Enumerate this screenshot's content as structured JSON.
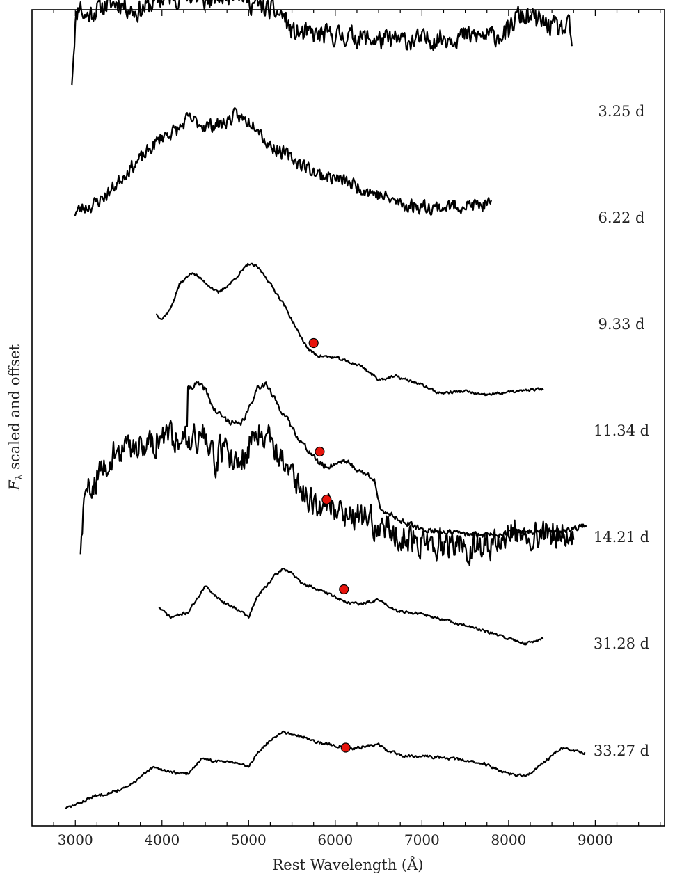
{
  "chart_data": {
    "type": "line",
    "xlabel": "Rest Wavelength (Å)",
    "ylabel": "F_λ scaled and offset",
    "ylabel_main": "F",
    "ylabel_sub": "λ",
    "ylabel_rest": " scaled and offset",
    "xlim": [
      2500,
      9800
    ],
    "xticks_major": [
      3000,
      4000,
      5000,
      6000,
      7000,
      8000,
      9000
    ],
    "xtick_labels": [
      "3000",
      "4000",
      "5000",
      "6000",
      "7000",
      "8000",
      "9000"
    ],
    "xticks_minor_step": 250,
    "grid": false,
    "yticks_shown": false,
    "marker_color": "#e8140c",
    "line_color": "#000000",
    "series": [
      {
        "epoch": "3.25 d",
        "noise": 0.09,
        "seed": 11,
        "points": [
          [
            2960,
            0.3
          ],
          [
            3000,
            0.85
          ],
          [
            3050,
            1.05
          ],
          [
            3100,
            0.9
          ],
          [
            3200,
            0.95
          ],
          [
            3300,
            1.0
          ],
          [
            3500,
            1.05
          ],
          [
            3700,
            0.95
          ],
          [
            4000,
            1.08
          ],
          [
            4300,
            1.12
          ],
          [
            4500,
            1.05
          ],
          [
            4700,
            1.1
          ],
          [
            4850,
            1.18
          ],
          [
            5000,
            1.05
          ],
          [
            5200,
            0.98
          ],
          [
            5400,
            0.92
          ],
          [
            5500,
            0.75
          ],
          [
            5800,
            0.73
          ],
          [
            6200,
            0.72
          ],
          [
            6500,
            0.68
          ],
          [
            7000,
            0.68
          ],
          [
            7400,
            0.72
          ],
          [
            7800,
            0.72
          ],
          [
            8000,
            0.75
          ],
          [
            8100,
            0.92
          ],
          [
            8300,
            0.88
          ],
          [
            8600,
            0.78
          ],
          [
            8700,
            0.8
          ],
          [
            8730,
            0.65
          ]
        ]
      },
      {
        "epoch": "6.22 d",
        "noise": 0.06,
        "seed": 23,
        "points": [
          [
            2990,
            0.05
          ],
          [
            3100,
            0.1
          ],
          [
            3200,
            0.12
          ],
          [
            3400,
            0.25
          ],
          [
            3600,
            0.45
          ],
          [
            3800,
            0.6
          ],
          [
            4000,
            0.78
          ],
          [
            4200,
            0.85
          ],
          [
            4300,
            0.95
          ],
          [
            4500,
            0.88
          ],
          [
            4700,
            0.9
          ],
          [
            4850,
            0.98
          ],
          [
            5000,
            0.92
          ],
          [
            5100,
            0.9
          ],
          [
            5200,
            0.72
          ],
          [
            5400,
            0.62
          ],
          [
            5600,
            0.52
          ],
          [
            5800,
            0.42
          ],
          [
            6000,
            0.38
          ],
          [
            6200,
            0.32
          ],
          [
            6500,
            0.22
          ],
          [
            6800,
            0.12
          ],
          [
            7200,
            0.1
          ],
          [
            7500,
            0.12
          ],
          [
            7800,
            0.12
          ]
        ]
      },
      {
        "epoch": "9.33 d",
        "noise": 0.012,
        "seed": 37,
        "points": [
          [
            3930,
            0.1
          ],
          [
            4000,
            0.05
          ],
          [
            4100,
            0.15
          ],
          [
            4200,
            0.38
          ],
          [
            4350,
            0.5
          ],
          [
            4500,
            0.4
          ],
          [
            4650,
            0.3
          ],
          [
            4800,
            0.4
          ],
          [
            5000,
            0.58
          ],
          [
            5100,
            0.55
          ],
          [
            5200,
            0.45
          ],
          [
            5400,
            0.2
          ],
          [
            5600,
            -0.12
          ],
          [
            5700,
            -0.25
          ],
          [
            5800,
            -0.3
          ],
          [
            6000,
            -0.32
          ],
          [
            6300,
            -0.4
          ],
          [
            6500,
            -0.53
          ],
          [
            6700,
            -0.5
          ],
          [
            7000,
            -0.58
          ],
          [
            7200,
            -0.66
          ],
          [
            7500,
            -0.64
          ],
          [
            7700,
            -0.68
          ],
          [
            8000,
            -0.65
          ],
          [
            8400,
            -0.62
          ]
        ]
      },
      {
        "epoch": "11.34 d",
        "noise": 0.025,
        "seed": 41,
        "points": [
          [
            4290,
            0.05
          ],
          [
            4300,
            0.4
          ],
          [
            4400,
            0.45
          ],
          [
            4500,
            0.4
          ],
          [
            4600,
            0.2
          ],
          [
            4750,
            0.1
          ],
          [
            4900,
            0.05
          ],
          [
            5000,
            0.2
          ],
          [
            5100,
            0.42
          ],
          [
            5200,
            0.45
          ],
          [
            5300,
            0.3
          ],
          [
            5450,
            0.1
          ],
          [
            5600,
            -0.1
          ],
          [
            5800,
            -0.3
          ],
          [
            5900,
            -0.35
          ],
          [
            6100,
            -0.28
          ],
          [
            6300,
            -0.4
          ],
          [
            6450,
            -0.45
          ],
          [
            6520,
            -0.78
          ],
          [
            6600,
            -0.78
          ],
          [
            6800,
            -0.88
          ],
          [
            7000,
            -0.95
          ],
          [
            7300,
            -0.97
          ],
          [
            7600,
            -1.0
          ],
          [
            8000,
            -0.98
          ],
          [
            8400,
            -0.96
          ],
          [
            8700,
            -0.95
          ],
          [
            8900,
            -0.9
          ]
        ]
      },
      {
        "epoch": "14.21 d",
        "noise": 0.13,
        "seed": 59,
        "points": [
          [
            3060,
            -0.1
          ],
          [
            3100,
            0.3
          ],
          [
            3200,
            0.55
          ],
          [
            3300,
            0.6
          ],
          [
            3400,
            0.78
          ],
          [
            3500,
            0.8
          ],
          [
            3700,
            0.88
          ],
          [
            3900,
            0.92
          ],
          [
            4100,
            0.96
          ],
          [
            4300,
            0.98
          ],
          [
            4500,
            0.95
          ],
          [
            4600,
            0.7
          ],
          [
            4700,
            0.85
          ],
          [
            4900,
            0.72
          ],
          [
            5000,
            0.85
          ],
          [
            5100,
            1.05
          ],
          [
            5200,
            1.0
          ],
          [
            5300,
            0.88
          ],
          [
            5450,
            0.65
          ],
          [
            5600,
            0.45
          ],
          [
            5800,
            0.32
          ],
          [
            6000,
            0.28
          ],
          [
            6200,
            0.22
          ],
          [
            6500,
            0.12
          ],
          [
            6800,
            0.0
          ],
          [
            7000,
            -0.05
          ],
          [
            7300,
            -0.08
          ],
          [
            7600,
            -0.1
          ],
          [
            7900,
            -0.05
          ],
          [
            8100,
            0.05
          ],
          [
            8400,
            0.05
          ],
          [
            8750,
            0.05
          ]
        ]
      },
      {
        "epoch": "31.28 d",
        "noise": 0.012,
        "seed": 71,
        "points": [
          [
            3960,
            0.35
          ],
          [
            4100,
            0.25
          ],
          [
            4300,
            0.3
          ],
          [
            4500,
            0.55
          ],
          [
            4700,
            0.4
          ],
          [
            4900,
            0.32
          ],
          [
            5000,
            0.25
          ],
          [
            5100,
            0.45
          ],
          [
            5300,
            0.65
          ],
          [
            5400,
            0.72
          ],
          [
            5500,
            0.68
          ],
          [
            5600,
            0.58
          ],
          [
            5800,
            0.52
          ],
          [
            6000,
            0.45
          ],
          [
            6100,
            0.4
          ],
          [
            6300,
            0.38
          ],
          [
            6500,
            0.42
          ],
          [
            6700,
            0.32
          ],
          [
            7000,
            0.28
          ],
          [
            7300,
            0.22
          ],
          [
            7600,
            0.15
          ],
          [
            8000,
            0.05
          ],
          [
            8200,
            0.0
          ],
          [
            8400,
            0.05
          ]
        ]
      },
      {
        "epoch": "33.27 d",
        "noise": 0.012,
        "seed": 83,
        "points": [
          [
            2890,
            -0.55
          ],
          [
            3000,
            -0.52
          ],
          [
            3200,
            -0.44
          ],
          [
            3400,
            -0.4
          ],
          [
            3600,
            -0.35
          ],
          [
            3800,
            -0.22
          ],
          [
            3900,
            -0.16
          ],
          [
            4000,
            -0.18
          ],
          [
            4200,
            -0.22
          ],
          [
            4300,
            -0.22
          ],
          [
            4450,
            -0.08
          ],
          [
            4600,
            -0.1
          ],
          [
            4800,
            -0.1
          ],
          [
            5000,
            -0.15
          ],
          [
            5100,
            -0.02
          ],
          [
            5300,
            0.14
          ],
          [
            5400,
            0.18
          ],
          [
            5600,
            0.14
          ],
          [
            5800,
            0.08
          ],
          [
            6000,
            0.05
          ],
          [
            6200,
            0.02
          ],
          [
            6400,
            0.05
          ],
          [
            6500,
            0.06
          ],
          [
            6600,
            0.0
          ],
          [
            6800,
            -0.05
          ],
          [
            7000,
            -0.05
          ],
          [
            7400,
            -0.08
          ],
          [
            7700,
            -0.12
          ],
          [
            8000,
            -0.22
          ],
          [
            8200,
            -0.24
          ],
          [
            8400,
            -0.12
          ],
          [
            8600,
            0.02
          ],
          [
            8880,
            -0.02
          ]
        ]
      }
    ],
    "markers": [
      {
        "epoch": "9.33 d",
        "x": 5750,
        "y": -0.18
      },
      {
        "epoch": "11.34 d",
        "x": 5820,
        "y": -0.2
      },
      {
        "epoch": "14.21 d",
        "x": 5900,
        "y": 0.36
      },
      {
        "epoch": "31.28 d",
        "x": 6100,
        "y": 0.52
      },
      {
        "epoch": "33.27 d",
        "x": 6120,
        "y": 0.03
      }
    ]
  }
}
